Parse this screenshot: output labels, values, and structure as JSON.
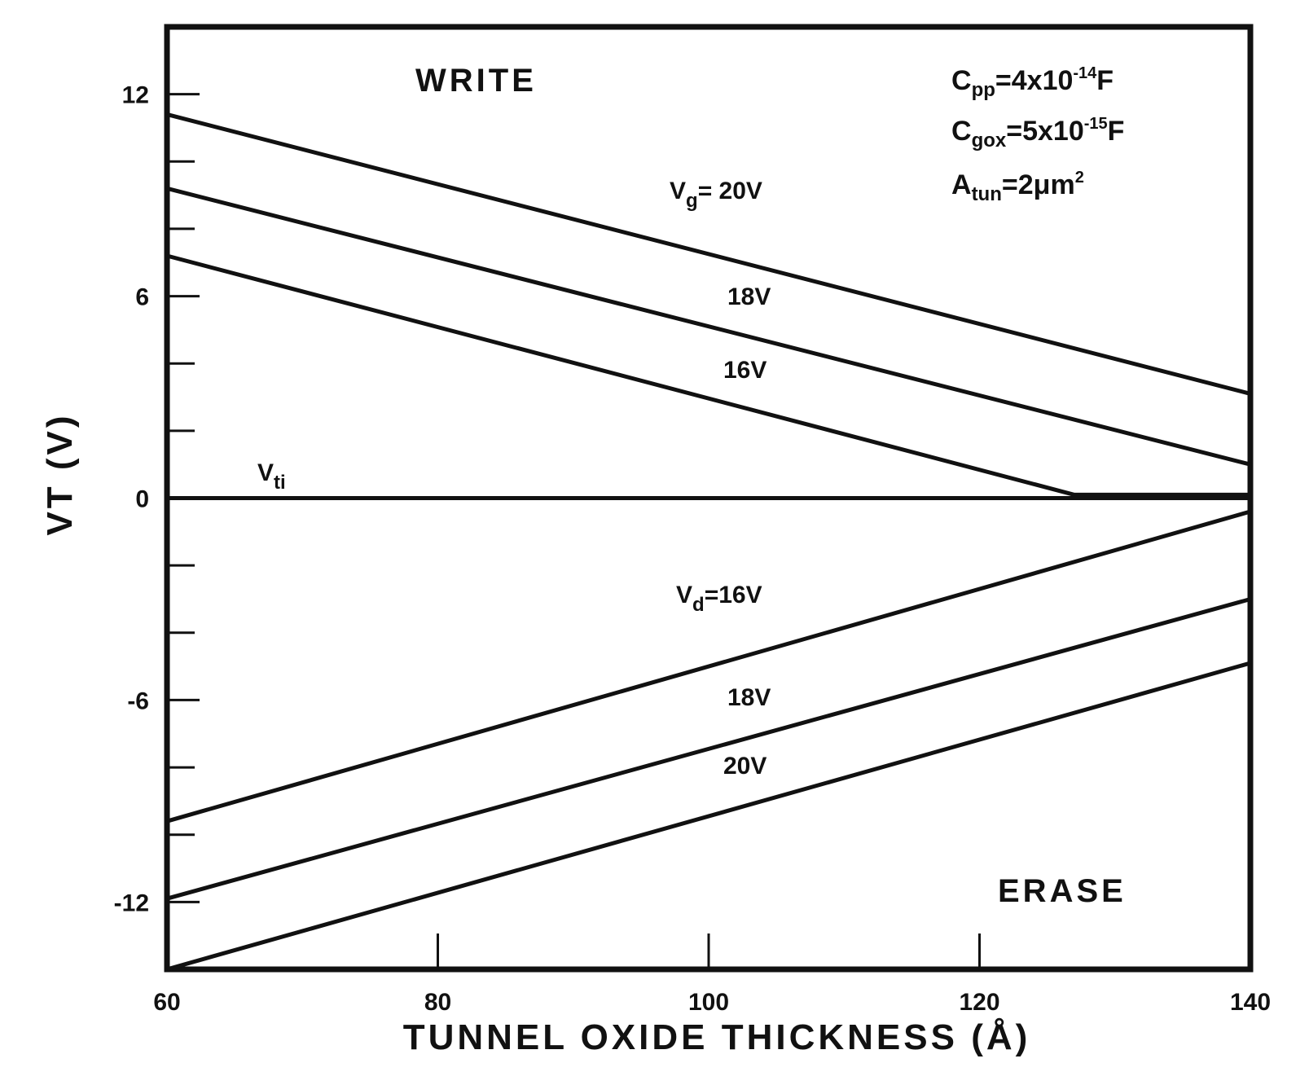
{
  "chart_data": {
    "type": "line",
    "xlabel": "TUNNEL OXIDE THICKNESS (Å)",
    "ylabel": "VT (V)",
    "xlim": [
      60,
      140
    ],
    "ylim": [
      -14,
      14
    ],
    "x_ticks": [
      "60",
      "80",
      "100",
      "120",
      "140"
    ],
    "y_ticks": [
      "12",
      "6",
      "0",
      "-6",
      "-12"
    ],
    "x_tick_values": [
      60,
      80,
      100,
      120,
      140
    ],
    "y_tick_values": [
      12,
      6,
      0,
      -6,
      -12
    ],
    "grid": false,
    "region_labels": {
      "write": "WRITE",
      "erase": "ERASE"
    },
    "parameters": {
      "cpp": {
        "base": "C",
        "sub": "pp",
        "value": "=4x10",
        "exp": "-14",
        "unit": "F"
      },
      "cgox": {
        "base": "C",
        "sub": "gox",
        "value": "=5x10",
        "exp": "-15",
        "unit": "F"
      },
      "atun": {
        "base": "A",
        "sub": "tun",
        "value": "=2μm",
        "exp": "2",
        "unit": ""
      }
    },
    "series": [
      {
        "label": "Vg=20V",
        "label_base": "V",
        "label_sub": "g",
        "label_rest": "= 20V",
        "x": [
          60,
          140
        ],
        "y": [
          11.4,
          3.1
        ]
      },
      {
        "label": "18V",
        "x": [
          60,
          140
        ],
        "y": [
          9.2,
          1.0
        ]
      },
      {
        "label": "16V",
        "x": [
          60,
          127,
          140
        ],
        "y": [
          7.2,
          0.1,
          0.1
        ]
      },
      {
        "label": "Vti",
        "label_base": "V",
        "label_sub": "ti",
        "label_rest": "",
        "x": [
          60,
          140
        ],
        "y": [
          0,
          0
        ]
      },
      {
        "label": "Vd=16V",
        "label_base": "V",
        "label_sub": "d",
        "label_rest": "=16V",
        "x": [
          60,
          140
        ],
        "y": [
          -9.6,
          -0.4
        ]
      },
      {
        "label": "18V",
        "x": [
          60,
          140
        ],
        "y": [
          -11.9,
          -3.0
        ]
      },
      {
        "label": "20V",
        "x": [
          60,
          140
        ],
        "y": [
          -14.0,
          -4.9
        ]
      }
    ]
  }
}
